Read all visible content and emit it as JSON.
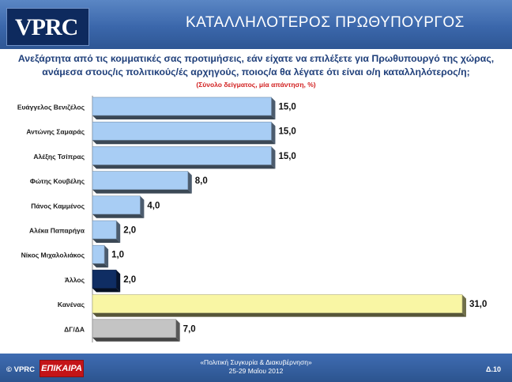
{
  "header": {
    "logo": "VPRC",
    "title": "ΚΑΤΑΛΛΗΛΟΤΕΡΟΣ ΠΡΩΘΥΠΟΥΡΓΟΣ"
  },
  "question": {
    "line1": "Ανεξάρτητα από τις κομματικές σας προτιμήσεις, εάν είχατε να επιλέξετε για Πρωθυπουργό της χώρας,",
    "line2": "ανάμεσα στους/ις πολιτικούς/ές αρχηγούς, ποιος/α θα λέγατε ότι είναι ο/η καταλληλότερος/η;",
    "note": "(Σύνολο δείγματος, μία απάντηση, %)"
  },
  "chart_data": {
    "type": "bar",
    "orientation": "horizontal",
    "categories": [
      "Ευάγγελος Βενιζέλος",
      "Αντώνης Σαμαράς",
      "Αλέξης Τσίπρας",
      "Φώτης Κουβέλης",
      "Πάνος Καμμένος",
      "Αλέκα Παπαρήγα",
      "Νίκος Μιχαλολιάκος",
      "Άλλος",
      "Κανένας",
      "ΔΓ/ΔΑ"
    ],
    "values": [
      15.0,
      15.0,
      15.0,
      8.0,
      4.0,
      2.0,
      1.0,
      2.0,
      31.0,
      7.0
    ],
    "value_labels": [
      "15,0",
      "15,0",
      "15,0",
      "8,0",
      "4,0",
      "2,0",
      "1,0",
      "2,0",
      "31,0",
      "7,0"
    ],
    "colors": [
      "#a8cdf4",
      "#a8cdf4",
      "#a8cdf4",
      "#a8cdf4",
      "#a8cdf4",
      "#a8cdf4",
      "#a8cdf4",
      "#0f2d63",
      "#f9f6a4",
      "#c4c4c4"
    ],
    "xlim": [
      0,
      31
    ],
    "grid": false,
    "legend": false
  },
  "footer": {
    "copyright": "© VPRC",
    "brand": "ΕΠΙΚΑΙΡΑ",
    "line1": "«Πολιτική Συγκυρία & Διακυβέρνηση»",
    "line2": "25-29 Μαΐου 2012",
    "page": "Δ.10"
  }
}
